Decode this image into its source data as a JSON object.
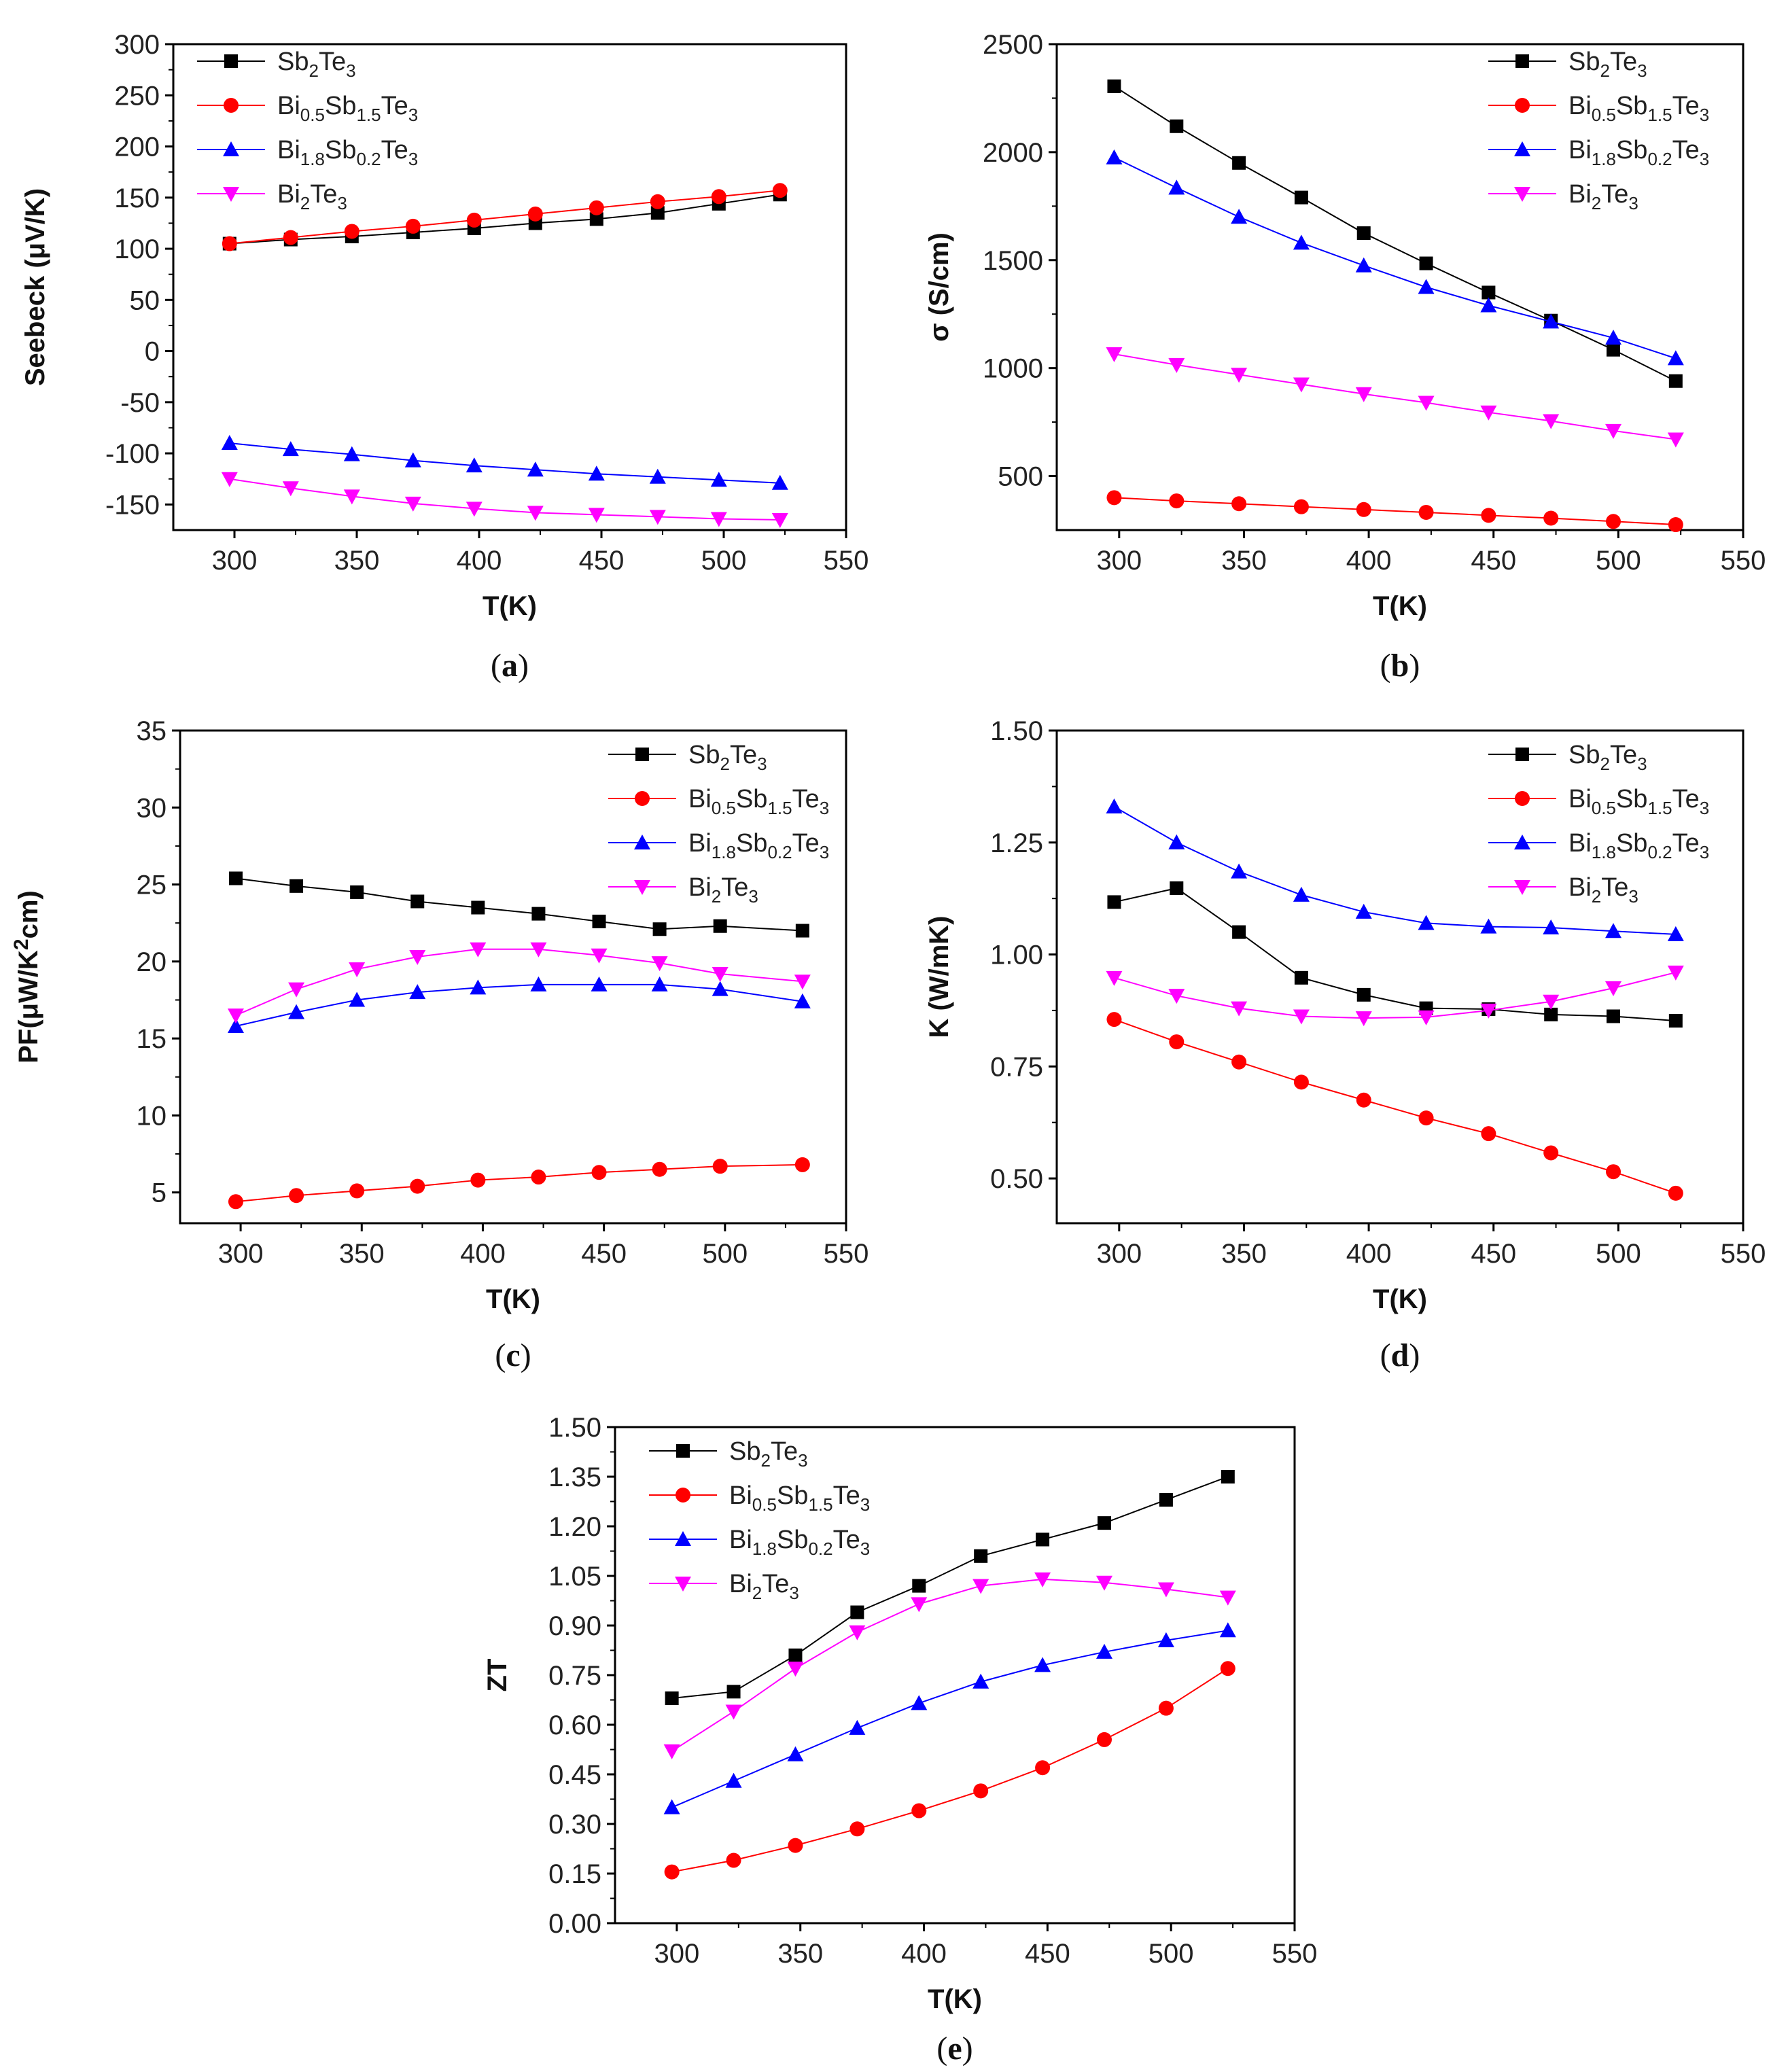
{
  "chart_data": [
    {
      "id": "a",
      "type": "line",
      "caption": "a",
      "xlabel": "T(K)",
      "ylabel": "Seebeck (μV/K)",
      "xlim": [
        275,
        550
      ],
      "ylim": [
        -175,
        300
      ],
      "xticks": [
        300,
        350,
        400,
        450,
        500,
        550
      ],
      "yticks": [
        -150,
        -100,
        -50,
        0,
        50,
        100,
        150,
        200,
        250,
        300
      ],
      "x": [
        298,
        323,
        348,
        373,
        398,
        423,
        448,
        473,
        498,
        523
      ],
      "series": [
        {
          "name": "Sb2Te3",
          "values": [
            105,
            109,
            112,
            116,
            120,
            125,
            129,
            135,
            144,
            153
          ]
        },
        {
          "name": "Bi0.5Sb1.5Te3",
          "values": [
            105,
            111,
            117,
            122,
            128,
            134,
            140,
            146,
            151,
            157
          ]
        },
        {
          "name": "Bi1.8Sb0.2Te3",
          "values": [
            -90,
            -96,
            -101,
            -107,
            -112,
            -116,
            -120,
            -123,
            -126,
            -129
          ]
        },
        {
          "name": "Bi2Te3",
          "values": [
            -125,
            -134,
            -142,
            -149,
            -154,
            -158,
            -160,
            -162,
            -164,
            -165
          ]
        }
      ]
    },
    {
      "id": "b",
      "type": "line",
      "caption": "b",
      "xlabel": "T(K)",
      "ylabel": "σ (S/cm)",
      "xlim": [
        275,
        550
      ],
      "ylim": [
        250,
        2500
      ],
      "xticks": [
        300,
        350,
        400,
        450,
        500,
        550
      ],
      "yticks": [
        500,
        1000,
        1500,
        2000,
        2500
      ],
      "x": [
        298,
        323,
        348,
        373,
        398,
        423,
        448,
        473,
        498,
        523
      ],
      "series": [
        {
          "name": "Sb2Te3",
          "values": [
            2305,
            2120,
            1950,
            1790,
            1625,
            1485,
            1350,
            1220,
            1085,
            940
          ]
        },
        {
          "name": "Bi0.5Sb1.5Te3",
          "values": [
            400,
            385,
            372,
            358,
            345,
            332,
            318,
            305,
            290,
            275
          ]
        },
        {
          "name": "Bi1.8Sb0.2Te3",
          "values": [
            1975,
            1835,
            1700,
            1580,
            1475,
            1375,
            1290,
            1215,
            1140,
            1045
          ]
        },
        {
          "name": "Bi2Te3",
          "values": [
            1065,
            1015,
            970,
            925,
            880,
            840,
            795,
            755,
            710,
            670
          ]
        }
      ]
    },
    {
      "id": "c",
      "type": "line",
      "caption": "c",
      "xlabel": "T(K)",
      "ylabel": "PF(μW/K²cm)",
      "xlim": [
        275,
        550
      ],
      "ylim": [
        3,
        35
      ],
      "xticks": [
        300,
        350,
        400,
        450,
        500,
        550
      ],
      "yticks": [
        5,
        10,
        15,
        20,
        25,
        30,
        35
      ],
      "x": [
        298,
        323,
        348,
        373,
        398,
        423,
        448,
        473,
        498,
        532
      ],
      "series": [
        {
          "name": "Sb2Te3",
          "values": [
            25.4,
            24.9,
            24.5,
            23.9,
            23.5,
            23.1,
            22.6,
            22.1,
            22.3,
            22.0
          ]
        },
        {
          "name": "Bi0.5Sb1.5Te3",
          "values": [
            4.4,
            4.8,
            5.1,
            5.4,
            5.8,
            6.0,
            6.3,
            6.5,
            6.7,
            6.8
          ]
        },
        {
          "name": "Bi1.8Sb0.2Te3",
          "values": [
            15.8,
            16.7,
            17.5,
            18.0,
            18.3,
            18.5,
            18.5,
            18.5,
            18.2,
            17.4
          ]
        },
        {
          "name": "Bi2Te3",
          "values": [
            16.5,
            18.2,
            19.5,
            20.3,
            20.8,
            20.8,
            20.4,
            19.9,
            19.2,
            18.7
          ]
        }
      ]
    },
    {
      "id": "d",
      "type": "line",
      "caption": "d",
      "xlabel": "T(K)",
      "ylabel": "K (W/mK)",
      "xlim": [
        275,
        550
      ],
      "ylim": [
        0.4,
        1.5
      ],
      "xticks": [
        300,
        350,
        400,
        450,
        500,
        550
      ],
      "yticks": [
        0.5,
        0.75,
        1.0,
        1.25,
        1.5
      ],
      "ytick_labels": [
        "0.50",
        "0.75",
        "1.00",
        "1.25",
        "1.50"
      ],
      "x": [
        298,
        323,
        348,
        373,
        398,
        423,
        448,
        473,
        498,
        523
      ],
      "series": [
        {
          "name": "Sb2Te3",
          "values": [
            1.117,
            1.148,
            1.05,
            0.948,
            0.91,
            0.88,
            0.878,
            0.866,
            0.862,
            0.852
          ]
        },
        {
          "name": "Bi0.5Sb1.5Te3",
          "values": [
            0.855,
            0.805,
            0.76,
            0.715,
            0.675,
            0.635,
            0.6,
            0.557,
            0.515,
            0.467
          ]
        },
        {
          "name": "Bi1.8Sb0.2Te3",
          "values": [
            1.33,
            1.25,
            1.185,
            1.133,
            1.095,
            1.07,
            1.062,
            1.06,
            1.052,
            1.045
          ]
        },
        {
          "name": "Bi2Te3",
          "values": [
            0.948,
            0.908,
            0.88,
            0.862,
            0.858,
            0.86,
            0.875,
            0.895,
            0.925,
            0.96
          ]
        }
      ]
    },
    {
      "id": "e",
      "type": "line",
      "caption": "e",
      "xlabel": "T(K)",
      "ylabel": "ZT",
      "xlim": [
        275,
        550
      ],
      "ylim": [
        0.0,
        1.5
      ],
      "xticks": [
        300,
        350,
        400,
        450,
        500,
        550
      ],
      "yticks": [
        0.0,
        0.15,
        0.3,
        0.45,
        0.6,
        0.75,
        0.9,
        1.05,
        1.2,
        1.35,
        1.5
      ],
      "ytick_labels": [
        "0.00",
        "0.15",
        "0.30",
        "0.45",
        "0.60",
        "0.75",
        "0.90",
        "1.05",
        "1.20",
        "1.35",
        "1.50"
      ],
      "x": [
        298,
        323,
        348,
        373,
        398,
        423,
        448,
        473,
        498,
        523
      ],
      "series": [
        {
          "name": "Sb2Te3",
          "values": [
            0.68,
            0.7,
            0.81,
            0.94,
            1.02,
            1.11,
            1.16,
            1.21,
            1.28,
            1.35
          ]
        },
        {
          "name": "Bi0.5Sb1.5Te3",
          "values": [
            0.155,
            0.19,
            0.235,
            0.285,
            0.34,
            0.4,
            0.47,
            0.555,
            0.65,
            0.77
          ]
        },
        {
          "name": "Bi1.8Sb0.2Te3",
          "values": [
            0.35,
            0.43,
            0.51,
            0.59,
            0.665,
            0.73,
            0.78,
            0.82,
            0.855,
            0.885
          ]
        },
        {
          "name": "Bi2Te3",
          "values": [
            0.52,
            0.64,
            0.77,
            0.88,
            0.965,
            1.02,
            1.04,
            1.03,
            1.01,
            0.985
          ]
        }
      ]
    }
  ],
  "legend": [
    {
      "label": "Sb2Te3",
      "parts": [
        [
          "Sb",
          ""
        ],
        [
          "2",
          "sub"
        ],
        [
          "Te",
          ""
        ],
        [
          "3",
          "sub"
        ]
      ],
      "color": "#000000",
      "marker": "square"
    },
    {
      "label": "Bi0.5Sb1.5Te3",
      "parts": [
        [
          "Bi",
          ""
        ],
        [
          "0.5",
          "sub"
        ],
        [
          "Sb",
          ""
        ],
        [
          "1.5",
          "sub"
        ],
        [
          "Te",
          ""
        ],
        [
          "3",
          "sub"
        ]
      ],
      "color": "#ff0000",
      "marker": "circle"
    },
    {
      "label": "Bi1.8Sb0.2Te3",
      "parts": [
        [
          "Bi",
          ""
        ],
        [
          "1.8",
          "sub"
        ],
        [
          "Sb",
          ""
        ],
        [
          "0.2",
          "sub"
        ],
        [
          "Te",
          ""
        ],
        [
          "3",
          "sub"
        ]
      ],
      "color": "#0000ff",
      "marker": "triangle-up"
    },
    {
      "label": "Bi2Te3",
      "parts": [
        [
          "Bi",
          ""
        ],
        [
          "2",
          "sub"
        ],
        [
          "Te",
          ""
        ],
        [
          "3",
          "sub"
        ]
      ],
      "color": "#ff00ff",
      "marker": "triangle-down"
    }
  ]
}
